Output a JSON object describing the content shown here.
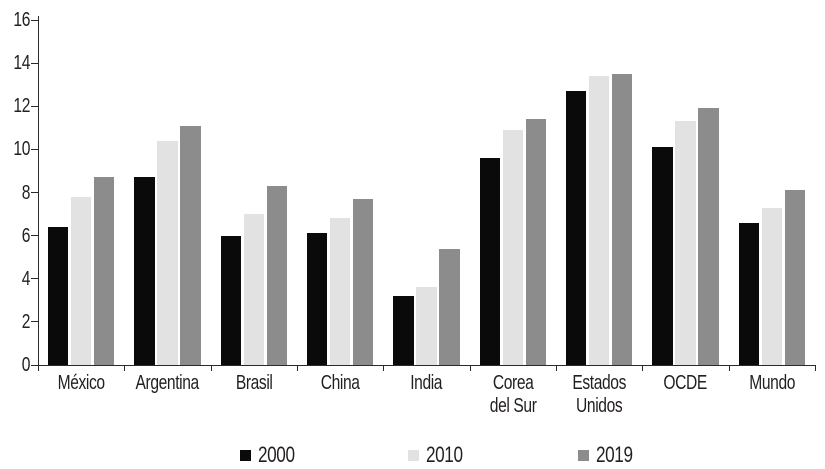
{
  "chart_data": {
    "type": "bar",
    "title": "",
    "xlabel": "",
    "ylabel": "",
    "categories": [
      "México",
      "Argentina",
      "Brasil",
      "China",
      "India",
      "Corea\ndel Sur",
      "Estados\nUnidos",
      "OCDE",
      "Mundo"
    ],
    "series": [
      {
        "name": "2000",
        "color": "#0a0a0a",
        "values": [
          6.4,
          8.7,
          6.0,
          6.1,
          3.2,
          9.6,
          12.7,
          10.1,
          6.6
        ]
      },
      {
        "name": "2010",
        "color": "#e2e2e2",
        "values": [
          7.8,
          10.4,
          7.0,
          6.8,
          3.6,
          10.9,
          13.4,
          11.3,
          7.3
        ]
      },
      {
        "name": "2019",
        "color": "#8c8c8c",
        "values": [
          8.7,
          11.1,
          8.3,
          7.7,
          5.4,
          11.4,
          13.5,
          11.9,
          8.1
        ]
      }
    ],
    "ylim": [
      0,
      16
    ],
    "yticks": [
      0,
      2,
      4,
      6,
      8,
      10,
      12,
      14,
      16
    ],
    "grid": false,
    "legend_position": "bottom",
    "colors": {
      "axis": "#2a2a2a",
      "text": "#231f20",
      "background": "#ffffff"
    }
  }
}
